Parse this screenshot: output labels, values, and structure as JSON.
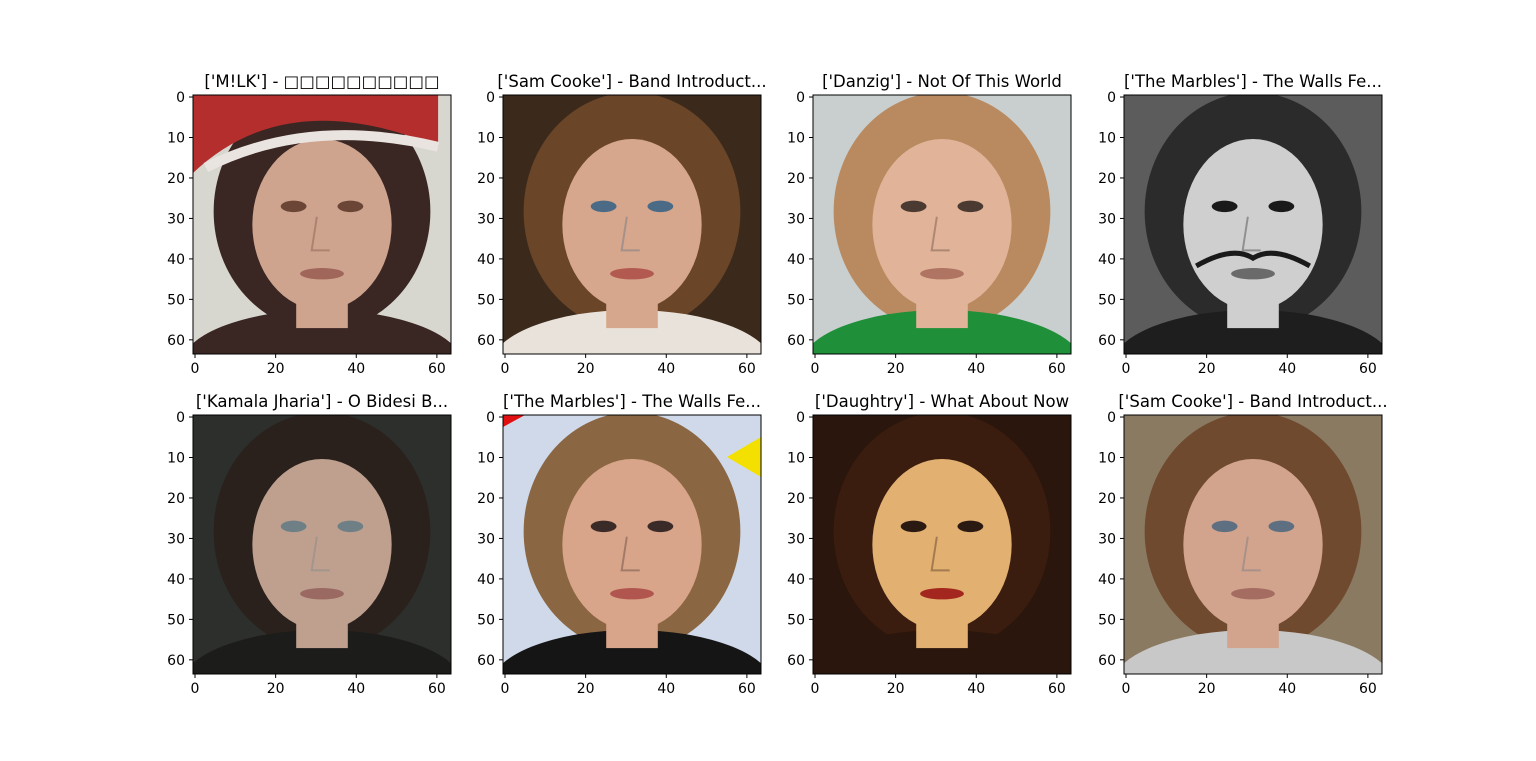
{
  "chart_data": [
    {
      "type": "image",
      "title": "['M!LK'] - □□□□□□□□□□",
      "xticks": [
        0,
        20,
        40,
        60
      ],
      "yticks": [
        0,
        10,
        20,
        30,
        40,
        50,
        60
      ],
      "xlim": [
        -0.5,
        63.5
      ],
      "ylim": [
        63.5,
        -0.5
      ],
      "image_description": "Young woman frowning, wearing a red Santa hat, long dark hair, pale background",
      "palette": {
        "bg": "#d7d6cf",
        "hair": "#3a2622",
        "skin": "#cfa48f",
        "hat": "#b52e2e",
        "hat_trim": "#e9e4df",
        "clothing": "#3a2622",
        "feature": "#6b4636",
        "lips": "#a0665a"
      }
    },
    {
      "type": "image",
      "title": "['Sam Cooke'] - Band Introduct...",
      "xticks": [
        0,
        20,
        40,
        60
      ],
      "yticks": [
        0,
        10,
        20,
        30,
        40,
        50,
        60
      ],
      "xlim": [
        -0.5,
        63.5
      ],
      "ylim": [
        63.5,
        -0.5
      ],
      "image_description": "Young woman with curly brown hair, blue eyes, close-up portrait",
      "palette": {
        "bg": "#3b2a1c",
        "hair": "#6a4528",
        "skin": "#d6a78c",
        "clothing": "#e9e2da",
        "feature": "#4a6a86",
        "lips": "#b35a50"
      }
    },
    {
      "type": "image",
      "title": "['Danzig'] - Not Of This World",
      "xticks": [
        0,
        20,
        40,
        60
      ],
      "yticks": [
        0,
        10,
        20,
        30,
        40,
        50,
        60
      ],
      "xlim": [
        -0.5,
        63.5
      ],
      "ylim": [
        63.5,
        -0.5
      ],
      "image_description": "Toddler with determined expression wearing a green shirt, light sandy background",
      "palette": {
        "bg": "#c9cfcf",
        "hair": "#b98a5f",
        "skin": "#e1b398",
        "clothing": "#1f8f3a",
        "feature": "#4a3a32",
        "lips": "#b07462"
      }
    },
    {
      "type": "image",
      "title": "['The Marbles'] - The Walls Fe...",
      "xticks": [
        0,
        20,
        40,
        60
      ],
      "yticks": [
        0,
        10,
        20,
        30,
        40,
        50,
        60
      ],
      "xlim": [
        -0.5,
        63.5
      ],
      "ylim": [
        63.5,
        -0.5
      ],
      "image_description": "Black-and-white photo of a man with wide eyes and a long upturned mustache",
      "palette": {
        "bg": "#5c5c5c",
        "hair": "#2b2b2b",
        "skin": "#cfcfcf",
        "clothing": "#1e1e1e",
        "feature": "#1a1a1a",
        "lips": "#6a6a6a"
      }
    },
    {
      "type": "image",
      "title": "['Kamala Jharia'] - O Bidesi B...",
      "xticks": [
        0,
        20,
        40,
        60
      ],
      "yticks": [
        0,
        10,
        20,
        30,
        40,
        50,
        60
      ],
      "xlim": [
        -0.5,
        63.5
      ],
      "ylim": [
        63.5,
        -0.5
      ],
      "image_description": "Woman with hair pulled back, pale skin, light eyes, dark car interior background",
      "palette": {
        "bg": "#2d2f2c",
        "hair": "#2a211c",
        "skin": "#bfa08f",
        "clothing": "#1c1c1a",
        "feature": "#6f7f86",
        "lips": "#9a6a62"
      }
    },
    {
      "type": "image",
      "title": "['The Marbles'] - The Walls Fe...",
      "xticks": [
        0,
        20,
        40,
        60
      ],
      "yticks": [
        0,
        10,
        20,
        30,
        40,
        50,
        60
      ],
      "xlim": [
        -0.5,
        63.5
      ],
      "ylim": [
        63.5,
        -0.5
      ],
      "image_description": "Blonde woman with surprised open-mouth expression, bright blue-white background, red and yellow corner marks",
      "palette": {
        "bg": "#cfd9ea",
        "hair": "#8a6642",
        "skin": "#d9a58a",
        "clothing": "#151515",
        "feature": "#3a2a28",
        "lips": "#b0564e"
      }
    },
    {
      "type": "image",
      "title": "['Daughtry'] - What About Now",
      "xticks": [
        0,
        20,
        40,
        60
      ],
      "yticks": [
        0,
        10,
        20,
        30,
        40,
        50,
        60
      ],
      "xlim": [
        -0.5,
        63.5
      ],
      "ylim": [
        63.5,
        -0.5
      ],
      "image_description": "Woman with dark hair and bangs, red lips, dramatic warm lighting with shadows on face",
      "palette": {
        "bg": "#2a160c",
        "hair": "#3a1d0f",
        "skin": "#e2b070",
        "clothing": "#2a160c",
        "feature": "#2a1a12",
        "lips": "#a3271f"
      }
    },
    {
      "type": "image",
      "title": "['Sam Cooke'] - Band Introduct...",
      "xticks": [
        0,
        20,
        40,
        60
      ],
      "yticks": [
        0,
        10,
        20,
        30,
        40,
        50,
        60
      ],
      "xlim": [
        -0.5,
        63.5
      ],
      "ylim": [
        63.5,
        -0.5
      ],
      "image_description": "Young man with short hair and blue eyes, neutral expression, tan background",
      "palette": {
        "bg": "#8a7a62",
        "hair": "#6f4a2e",
        "skin": "#d2a48d",
        "clothing": "#c8c8c8",
        "feature": "#5d6f80",
        "lips": "#a56d62"
      }
    }
  ]
}
